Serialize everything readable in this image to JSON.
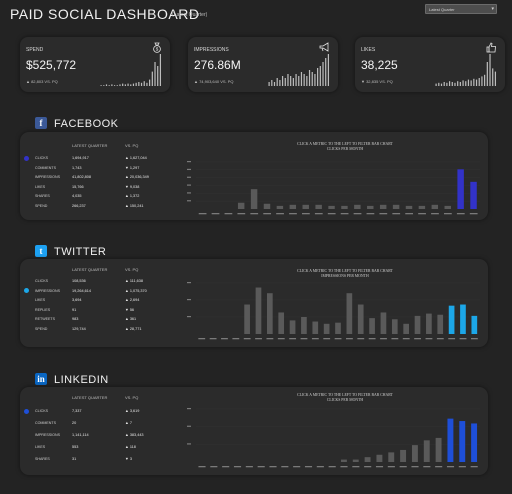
{
  "header": {
    "title": "PAID SOCIAL DASHBOARD",
    "subtitle": "(Latest Quarter)",
    "period_select": "Latest Quarter"
  },
  "kpis": [
    {
      "label": "SPEND",
      "value": "$525,772",
      "compare": "▲ 82,803 VS. PQ",
      "icon": "money-bag-icon",
      "spark": [
        1,
        1,
        2,
        1,
        2,
        1,
        1,
        2,
        3,
        2,
        3,
        2,
        3,
        4,
        5,
        4,
        6,
        4,
        8,
        18,
        30,
        25,
        40
      ]
    },
    {
      "label": "IMPRESSIONS",
      "value": "276.86M",
      "compare": "▲ 74,903,640 VS. PQ",
      "icon": "megaphone-icon",
      "spark": [
        2,
        3,
        2,
        4,
        3,
        5,
        4,
        6,
        5,
        4,
        6,
        5,
        7,
        6,
        5,
        8,
        7,
        6,
        9,
        10,
        12,
        14,
        16
      ]
    },
    {
      "label": "LIKES",
      "value": "38,225",
      "compare": "▼ 32,835 VS. PQ",
      "icon": "thumbs-up-icon",
      "spark": [
        3,
        4,
        3,
        5,
        4,
        6,
        5,
        4,
        6,
        5,
        7,
        6,
        8,
        7,
        9,
        8,
        10,
        12,
        14,
        30,
        40,
        22,
        18
      ]
    }
  ],
  "sections": {
    "facebook": {
      "name": "FACEBOOK",
      "logo": "f",
      "logo_color": "#3b5998",
      "accent": "#3232c8",
      "col_latest": "LATEST QUARTER",
      "col_vs": "VS. PQ",
      "rows": [
        {
          "label": "CLICKS",
          "latest": "1,694,917",
          "vs": "▲ 1,627,044"
        },
        {
          "label": "COMMENTS",
          "latest": "1,743",
          "vs": "▼ 1,297"
        },
        {
          "label": "IMPRESSIONS",
          "latest": "41,802,808",
          "vs": "▲ 20,036,349"
        },
        {
          "label": "LIKES",
          "latest": "15,766",
          "vs": "▼ 9,038"
        },
        {
          "label": "SHARES",
          "latest": "4,035",
          "vs": "▲ 1,372"
        },
        {
          "label": "SPEND",
          "latest": "266,237",
          "vs": "▲ 150,241"
        }
      ],
      "note": "CLICK A METRIC TO THE LEFT TO FILTER BAR CHART\nCLICKS PER MONTH"
    },
    "twitter": {
      "name": "TWITTER",
      "logo": "t",
      "logo_color": "#1da1f2",
      "accent": "#1ca7e8",
      "col_latest": "LATEST QUARTER",
      "col_vs": "VS. PQ",
      "rows": [
        {
          "label": "CLICKS",
          "latest": "108,536",
          "vs": "▲ 111,638"
        },
        {
          "label": "IMPRESSIONS",
          "latest": "19,264,614",
          "vs": "▲ 1,075,370"
        },
        {
          "label": "LIKES",
          "latest": "3,694",
          "vs": "▲ 2,694"
        },
        {
          "label": "REPLIES",
          "latest": "91",
          "vs": "▼ 56"
        },
        {
          "label": "RETWEETS",
          "latest": "983",
          "vs": "▲ 361"
        },
        {
          "label": "SPEND",
          "latest": "129,744",
          "vs": "▲ 28,771"
        }
      ],
      "note": "CLICK A METRIC TO THE LEFT TO FILTER BAR CHART\nIMPRESSIONS PER MONTH"
    },
    "linkedin": {
      "name": "LINKEDIN",
      "logo": "in",
      "logo_color": "#0a66c2",
      "accent": "#1e4fd8",
      "col_latest": "LATEST QUARTER",
      "col_vs": "VS. PQ",
      "rows": [
        {
          "label": "CLICKS",
          "latest": "7,337",
          "vs": "▲ 3,619"
        },
        {
          "label": "COMMENTS",
          "latest": "20",
          "vs": "▲ 7"
        },
        {
          "label": "IMPRESSIONS",
          "latest": "1,141,114",
          "vs": "▲ 383,443"
        },
        {
          "label": "LIKES",
          "latest": "553",
          "vs": "▲ 118"
        },
        {
          "label": "SHARES",
          "latest": "31",
          "vs": "▼ 3"
        }
      ],
      "note": "CLICK A METRIC TO THE LEFT TO FILTER BAR CHART\nCLICKS PER MONTH"
    }
  },
  "chart_data": [
    {
      "type": "bar",
      "title": "",
      "xlabel": "",
      "ylabel": "",
      "categories": [
        "1",
        "2",
        "3",
        "4",
        "5",
        "6",
        "7",
        "8",
        "9",
        "10",
        "11",
        "12",
        "13",
        "14",
        "15",
        "16",
        "17",
        "18",
        "19",
        "20",
        "21",
        "22"
      ],
      "values": [
        0,
        0,
        0,
        0.6,
        1.9,
        0.5,
        0.3,
        0.4,
        0.4,
        0.4,
        0.3,
        0.3,
        0.4,
        0.3,
        0.4,
        0.4,
        0.3,
        0.3,
        0.4,
        0.3,
        3.8,
        2.6
      ],
      "highlight": [
        20,
        21
      ],
      "ylim": [
        0,
        4.5
      ]
    },
    {
      "type": "bar",
      "title": "",
      "xlabel": "",
      "ylabel": "",
      "categories": [
        "1",
        "2",
        "3",
        "4",
        "5",
        "6",
        "7",
        "8",
        "9",
        "10",
        "11",
        "12",
        "13",
        "14",
        "15",
        "16",
        "17",
        "18",
        "19",
        "20",
        "21",
        "22",
        "23",
        "24",
        "25"
      ],
      "values": [
        0,
        0,
        0,
        0,
        2.6,
        4.1,
        3.6,
        1.9,
        1.2,
        1.5,
        1.1,
        0.9,
        1.0,
        3.6,
        2.6,
        1.4,
        1.9,
        1.3,
        0.9,
        1.6,
        1.8,
        1.7,
        2.5,
        2.6,
        1.6
      ],
      "highlight": [
        22,
        23,
        24
      ],
      "ylim": [
        0,
        4.5
      ]
    },
    {
      "type": "bar",
      "title": "",
      "xlabel": "",
      "ylabel": "",
      "categories": [
        "1",
        "2",
        "3",
        "4",
        "5",
        "6",
        "7",
        "8",
        "9",
        "10",
        "11",
        "12",
        "13",
        "14",
        "15",
        "16",
        "17",
        "18",
        "19",
        "20",
        "21",
        "22",
        "23",
        "24"
      ],
      "values": [
        0,
        0,
        0,
        0,
        0,
        0,
        0,
        0,
        0,
        0,
        0,
        0,
        0.1,
        0.1,
        0.2,
        0.3,
        0.4,
        0.5,
        0.7,
        0.9,
        1.0,
        1.8,
        1.7,
        1.6
      ],
      "highlight": [
        21,
        22,
        23
      ],
      "ylim": [
        0,
        2.2
      ]
    }
  ]
}
